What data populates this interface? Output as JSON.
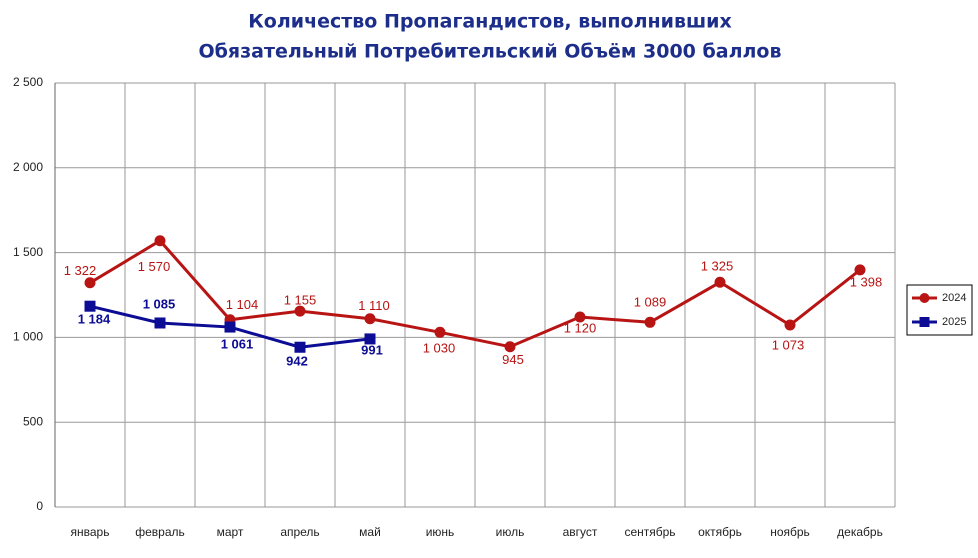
{
  "chart_data": {
    "type": "line",
    "title": [
      "Количество Пропагандистов, выполнивших",
      "Обязательный Потребительский Объём 3000 баллов"
    ],
    "categories": [
      "январь",
      "февраль",
      "март",
      "апрель",
      "май",
      "июнь",
      "июль",
      "август",
      "сентябрь",
      "октябрь",
      "ноябрь",
      "декабрь"
    ],
    "series": [
      {
        "name": "2024",
        "color": "#b81414",
        "marker": "circle",
        "values": [
          1322,
          1570,
          1104,
          1155,
          1110,
          1030,
          945,
          1120,
          1089,
          1325,
          1073,
          1398
        ],
        "value_labels": [
          "1 322",
          "1 570",
          "1 104",
          "1 155",
          "1 110",
          "1 030",
          "945",
          "1 120",
          "1 089",
          "1 325",
          "1 073",
          "1 398"
        ]
      },
      {
        "name": "2025",
        "color": "#0c0c94",
        "marker": "square",
        "values": [
          1184,
          1085,
          1061,
          942,
          991,
          null,
          null,
          null,
          null,
          null,
          null,
          null
        ],
        "value_labels": [
          "1 184",
          "1 085",
          "1 061",
          "942",
          "991",
          null,
          null,
          null,
          null,
          null,
          null,
          null
        ]
      }
    ],
    "ylim": [
      0,
      2500
    ],
    "yticks": [
      0,
      500,
      {
        "value": 1000,
        "label": "1 000"
      },
      {
        "value": 1500,
        "label": "1 500"
      },
      {
        "value": 2000,
        "label": "2 000"
      },
      {
        "value": 2500,
        "label": "2 500"
      }
    ],
    "grid": true,
    "legend": "right"
  }
}
